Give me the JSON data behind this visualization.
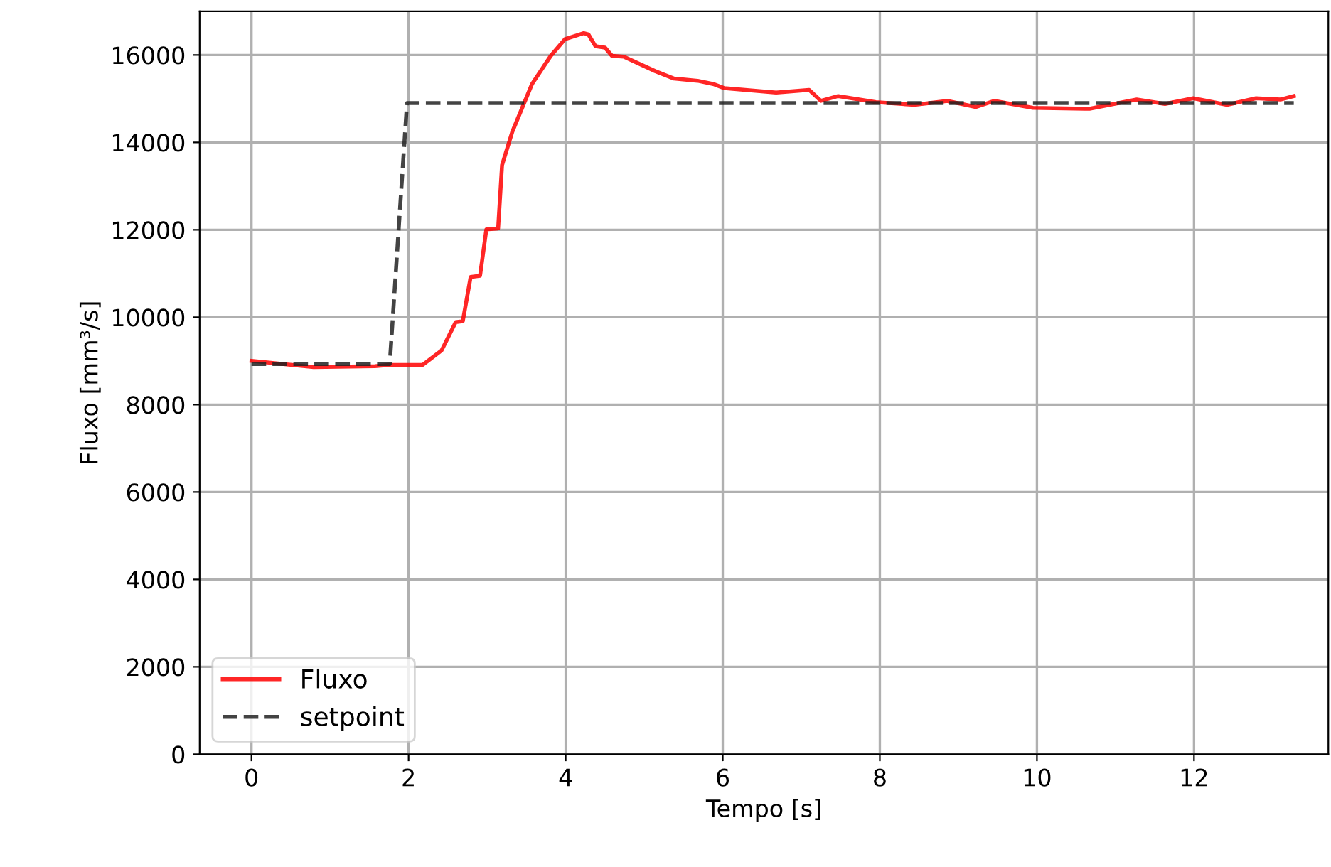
{
  "chart_data": {
    "type": "line",
    "xlabel": "Tempo [s]",
    "ylabel": "Fluxo [mm³/s]",
    "xlim": [
      -0.66,
      13.71
    ],
    "ylim": [
      0,
      17000
    ],
    "xticks": [
      0,
      2,
      4,
      6,
      8,
      10,
      12
    ],
    "yticks": [
      0,
      2000,
      4000,
      6000,
      8000,
      10000,
      12000,
      14000,
      16000
    ],
    "grid": true,
    "legend": "bottom left",
    "series": [
      {
        "name": "Fluxo",
        "color": "#ff0000",
        "line_style": "solid",
        "x": [
          0,
          0.79,
          1.57,
          1.75,
          2.18,
          2.42,
          2.6,
          2.69,
          2.79,
          2.91,
          2.99,
          3.14,
          3.19,
          3.32,
          3.57,
          3.81,
          3.99,
          4.23,
          4.29,
          4.38,
          4.5,
          4.59,
          4.74,
          5.14,
          5.38,
          5.68,
          5.89,
          6.02,
          6.68,
          7.1,
          7.25,
          7.47,
          7.95,
          8.44,
          8.86,
          9.22,
          9.46,
          9.95,
          10.67,
          11.27,
          11.63,
          11.99,
          12.42,
          12.79,
          13.1,
          13.27
        ],
        "values": [
          9000,
          8860,
          8880,
          8910,
          8910,
          9240,
          9890,
          9910,
          10920,
          10950,
          12010,
          12030,
          13480,
          14240,
          15330,
          15980,
          16360,
          16500,
          16470,
          16200,
          16170,
          15980,
          15960,
          15630,
          15460,
          15410,
          15330,
          15240,
          15140,
          15200,
          14950,
          15060,
          14920,
          14860,
          14950,
          14810,
          14950,
          14790,
          14770,
          14980,
          14880,
          15010,
          14860,
          15010,
          14980,
          15060
        ]
      },
      {
        "name": "setpoint",
        "color": "#222222",
        "line_style": "dashed",
        "x": [
          0,
          1.76,
          1.98,
          13.27
        ],
        "values": [
          8930,
          8930,
          14900,
          14900
        ]
      }
    ]
  }
}
